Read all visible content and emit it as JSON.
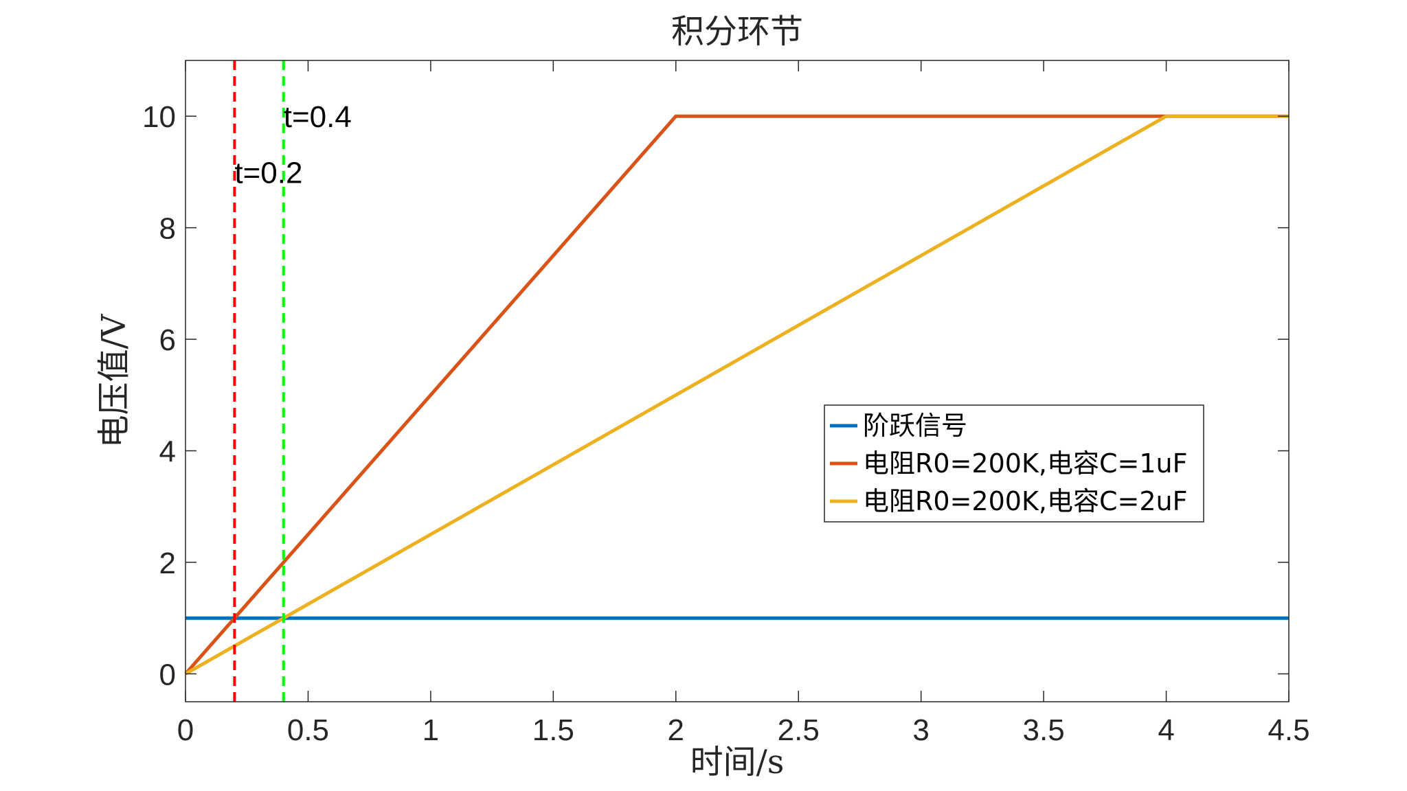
{
  "chart_data": {
    "type": "line",
    "title": "积分环节",
    "xlabel": "时间/s",
    "ylabel": "电压值/V",
    "xlim": [
      0,
      4.5
    ],
    "ylim": [
      -0.5,
      11
    ],
    "xticks": [
      0,
      0.5,
      1,
      1.5,
      2,
      2.5,
      3,
      3.5,
      4,
      4.5
    ],
    "xtick_labels": [
      "0",
      "0.5",
      "1",
      "1.5",
      "2",
      "2.5",
      "3",
      "3.5",
      "4",
      "4.5"
    ],
    "yticks": [
      0,
      2,
      4,
      6,
      8,
      10
    ],
    "ytick_labels": [
      "0",
      "2",
      "4",
      "6",
      "8",
      "10"
    ],
    "grid": false,
    "legend_position": "right",
    "series": [
      {
        "name": "阶跃信号",
        "color": "#0072BD",
        "x": [
          0,
          4.5
        ],
        "y": [
          1,
          1
        ]
      },
      {
        "name": "电阻R0=200K,电容C=1uF",
        "color": "#D95319",
        "x": [
          0,
          2,
          4.5
        ],
        "y": [
          0,
          10,
          10
        ]
      },
      {
        "name": "电阻R0=200K,电容C=2uF",
        "color": "#EDB120",
        "x": [
          0,
          4,
          4.5
        ],
        "y": [
          0,
          10,
          10
        ]
      }
    ],
    "vlines": [
      {
        "x": 0.2,
        "color": "#FF0000",
        "style": "dashed"
      },
      {
        "x": 0.4,
        "color": "#00FF00",
        "style": "dashed"
      }
    ],
    "annotations": [
      {
        "text": "t=0.2",
        "x": 0.2,
        "y": 9.0
      },
      {
        "text": "t=0.4",
        "x": 0.4,
        "y": 10.0
      }
    ]
  }
}
